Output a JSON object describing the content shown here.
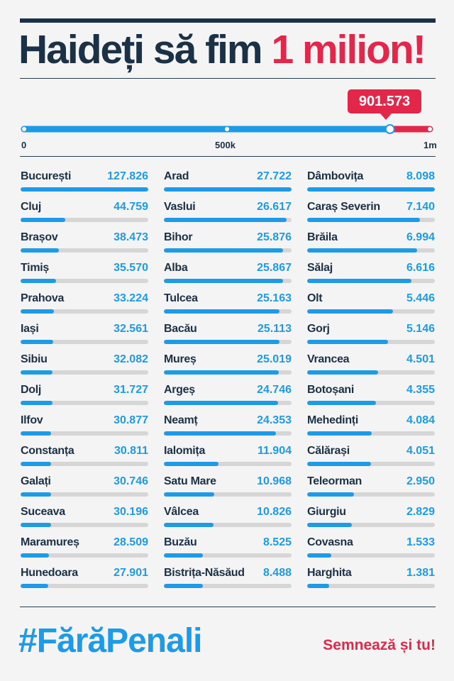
{
  "header": {
    "title_main": "Haideți să fim ",
    "title_highlight": "1 milion!"
  },
  "progress": {
    "current_label": "901.573",
    "current_value": 901573,
    "max_value": 1000000,
    "fraction": 0.9016,
    "tick_labels": [
      "0",
      "500k",
      "1m"
    ],
    "colors": {
      "fill": "#1d9be6",
      "remaining": "#e3274a"
    }
  },
  "chart_data": {
    "type": "bar",
    "title": "",
    "xlabel": "",
    "ylabel": "",
    "ylim": [
      0,
      130000
    ],
    "grid": false,
    "categories": [
      "București",
      "Cluj",
      "Brașov",
      "Timiș",
      "Prahova",
      "Iași",
      "Sibiu",
      "Dolj",
      "Ilfov",
      "Constanța",
      "Galați",
      "Suceava",
      "Maramureș",
      "Hunedoara",
      "Arad",
      "Vaslui",
      "Bihor",
      "Alba",
      "Tulcea",
      "Bacău",
      "Mureș",
      "Argeș",
      "Neamț",
      "Ialomița",
      "Satu Mare",
      "Vâlcea",
      "Buzău",
      "Bistrița-Năsăud",
      "Dâmbovița",
      "Caraș Severin",
      "Brăila",
      "Sălaj",
      "Olt",
      "Gorj",
      "Vrancea",
      "Botoșani",
      "Mehedinți",
      "Călărași",
      "Teleorman",
      "Giurgiu",
      "Covasna",
      "Harghita"
    ],
    "values": [
      127826,
      44759,
      38473,
      35570,
      33224,
      32561,
      32082,
      31727,
      30877,
      30811,
      30746,
      30196,
      28509,
      27901,
      27722,
      26617,
      25876,
      25867,
      25163,
      25113,
      25019,
      24746,
      24353,
      11904,
      10968,
      10826,
      8525,
      8488,
      8098,
      7140,
      6994,
      6616,
      5446,
      5146,
      4501,
      4355,
      4084,
      4051,
      2950,
      2829,
      1533,
      1381
    ],
    "labels": [
      "127.826",
      "44.759",
      "38.473",
      "35.570",
      "33.224",
      "32.561",
      "32.082",
      "31.727",
      "30.877",
      "30.811",
      "30.746",
      "30.196",
      "28.509",
      "27.901",
      "27.722",
      "26.617",
      "25.876",
      "25.867",
      "25.163",
      "25.113",
      "25.019",
      "24.746",
      "24.353",
      "11.904",
      "10.968",
      "10.826",
      "8.525",
      "8.488",
      "8.098",
      "7.140",
      "6.994",
      "6.616",
      "5.446",
      "5.146",
      "4.501",
      "4.355",
      "4.084",
      "4.051",
      "2.950",
      "2.829",
      "1.533",
      "1.381"
    ],
    "column_scale_max": [
      127826,
      27722,
      8098
    ]
  },
  "footer": {
    "hashtag": "#FărăPenali",
    "sign_label": "Semnează și tu!"
  },
  "colors": {
    "navy": "#1b3146",
    "blue": "#1d9be6",
    "red": "#e3274a",
    "track": "#d6d6d6",
    "background": "#f4f4f4"
  }
}
